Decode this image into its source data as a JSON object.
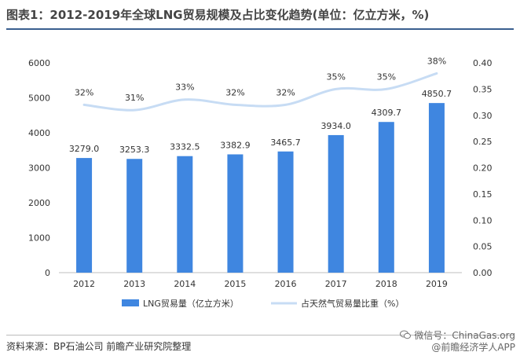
{
  "title": "图表1：2012-2019年全球LNG贸易规模及占比变化趋势(单位：亿立方米，%)",
  "source": "资料来源：BP石油公司 前瞻产业研究院整理",
  "watermark": {
    "line1": "微信号：ChinaGas.org",
    "line2": "@前瞻经济学人APP"
  },
  "chart_data": {
    "type": "bar",
    "categories": [
      "2012",
      "2013",
      "2014",
      "2015",
      "2016",
      "2017",
      "2018",
      "2019"
    ],
    "series": [
      {
        "name": "LNG贸易量（亿立方米）",
        "type": "bar",
        "axis": "left",
        "values": [
          3279.0,
          3253.3,
          3332.5,
          3382.9,
          3465.7,
          3934.0,
          4309.7,
          4850.7
        ],
        "labels": [
          "3279.0",
          "3253.3",
          "3332.5",
          "3382.9",
          "3465.7",
          "3934.0",
          "4309.7",
          "4850.7"
        ],
        "color": "#3f86e0"
      },
      {
        "name": "占天然气贸易量比重（%）",
        "type": "line",
        "axis": "right",
        "values": [
          0.32,
          0.31,
          0.33,
          0.32,
          0.32,
          0.35,
          0.35,
          0.38
        ],
        "labels": [
          "32%",
          "31%",
          "33%",
          "32%",
          "32%",
          "35%",
          "35%",
          "38%"
        ],
        "color": "#c7dcf4"
      }
    ],
    "y_left": {
      "ylim": [
        0,
        6000
      ],
      "ticks": [
        "0",
        "1000",
        "2000",
        "3000",
        "4000",
        "5000",
        "6000"
      ]
    },
    "y_right": {
      "ylim": [
        0,
        0.4
      ],
      "ticks": [
        "0.00",
        "0.05",
        "0.10",
        "0.15",
        "0.20",
        "0.25",
        "0.30",
        "0.35",
        "0.40"
      ]
    },
    "grid": false,
    "legend_position": "bottom"
  }
}
